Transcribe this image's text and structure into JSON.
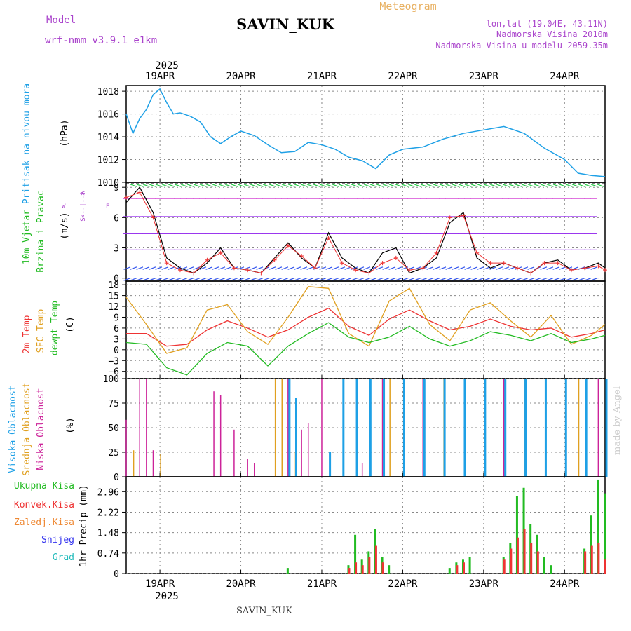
{
  "header": {
    "model_label": "Model",
    "model_name": "wrf-nmm_v3.9.1 e1km",
    "station": "SAVIN_KUK",
    "product": "Meteogram",
    "lonlat": "lon,lat (19.04E, 43.11N)",
    "altitude": "Nadmorska Visina 2010m",
    "model_altitude": "Nadmorska Visina u modelu 2059.35m",
    "footer_station": "SAVIN_KUK",
    "credit": "made by Angel",
    "year": "2025",
    "compass": {
      "w": "W",
      "e": "E",
      "n": "N",
      "s": "S",
      "arrow": "<--|-->"
    }
  },
  "colors": {
    "pressure": "#1ea0e6",
    "wind_label": "#22bb22",
    "wind_speed": "#000000",
    "wind_gust": "#ee3333",
    "temp_2m": "#ee3333",
    "temp_sfc": "#e0a020",
    "dewpoint": "#22bb22",
    "cloud_high": "#1ea0e6",
    "cloud_mid": "#e0a020",
    "cloud_low": "#cc2299",
    "rain_total": "#22bb22",
    "rain_conv": "#ee3333",
    "freezing_rain": "#ee8833",
    "snow": "#3333ee",
    "hail": "#22bbbb",
    "compass": "#aa44cc"
  },
  "chart_data": [
    {
      "type": "line",
      "panel": "pressure",
      "ylabel": "Pritisak na nivou mora",
      "unit": "(hPa)",
      "ylim": [
        1010,
        1018.5
      ],
      "yticks": [
        1010,
        1012,
        1014,
        1016,
        1018
      ],
      "xlim": [
        "2025-04-18 14:00",
        "2025-04-24 12:00"
      ],
      "xticks": [
        "19APR",
        "20APR",
        "21APR",
        "22APR",
        "23APR",
        "24APR"
      ],
      "grid": true,
      "series": [
        {
          "x": [
            "2025-04-18 14:00",
            "2025-04-18 16:00",
            "2025-04-18 18:00",
            "2025-04-18 20:00",
            "2025-04-18 22:00",
            "2025-04-19 00:00",
            "2025-04-19 02:00",
            "2025-04-19 04:00",
            "2025-04-19 06:00",
            "2025-04-19 09:00",
            "2025-04-19 12:00",
            "2025-04-19 15:00",
            "2025-04-19 18:00",
            "2025-04-19 21:00",
            "2025-04-20 00:00",
            "2025-04-20 04:00",
            "2025-04-20 08:00",
            "2025-04-20 12:00",
            "2025-04-20 16:00",
            "2025-04-20 20:00",
            "2025-04-21 00:00",
            "2025-04-21 04:00",
            "2025-04-21 08:00",
            "2025-04-21 12:00",
            "2025-04-21 16:00",
            "2025-04-21 20:00",
            "2025-04-22 00:00",
            "2025-04-22 06:00",
            "2025-04-22 12:00",
            "2025-04-22 18:00",
            "2025-04-23 00:00",
            "2025-04-23 06:00",
            "2025-04-23 12:00",
            "2025-04-23 18:00",
            "2025-04-24 00:00",
            "2025-04-24 04:00",
            "2025-04-24 08:00",
            "2025-04-24 12:00"
          ],
          "values": [
            1016.0,
            1014.3,
            1015.6,
            1016.4,
            1017.7,
            1018.2,
            1017.0,
            1016.0,
            1016.1,
            1015.8,
            1015.3,
            1014.0,
            1013.4,
            1014.0,
            1014.5,
            1014.1,
            1013.3,
            1012.6,
            1012.7,
            1013.5,
            1013.3,
            1012.9,
            1012.2,
            1011.9,
            1011.2,
            1012.4,
            1012.9,
            1013.1,
            1013.8,
            1014.3,
            1014.6,
            1014.9,
            1014.3,
            1013.0,
            1012.0,
            1010.8,
            1010.6,
            1010.5
          ],
          "name": "Pritisak na nivou mora"
        }
      ]
    },
    {
      "type": "line",
      "panel": "wind",
      "ylabel_lines": [
        "10m Vjetar",
        "Brzina i Pravac"
      ],
      "unit": "(m/s)",
      "ylim": [
        -0.3,
        9.5
      ],
      "yticks": [
        0,
        3,
        6,
        9
      ],
      "xlim": [
        "2025-04-18 14:00",
        "2025-04-24 12:00"
      ],
      "grid": true,
      "series": [
        {
          "name": "speed",
          "x": [
            "2025-04-18 14:00",
            "2025-04-18 18:00",
            "2025-04-18 22:00",
            "2025-04-19 02:00",
            "2025-04-19 06:00",
            "2025-04-19 10:00",
            "2025-04-19 14:00",
            "2025-04-19 18:00",
            "2025-04-19 22:00",
            "2025-04-20 02:00",
            "2025-04-20 06:00",
            "2025-04-20 10:00",
            "2025-04-20 14:00",
            "2025-04-20 18:00",
            "2025-04-20 22:00",
            "2025-04-21 02:00",
            "2025-04-21 06:00",
            "2025-04-21 10:00",
            "2025-04-21 14:00",
            "2025-04-21 18:00",
            "2025-04-21 22:00",
            "2025-04-22 02:00",
            "2025-04-22 06:00",
            "2025-04-22 10:00",
            "2025-04-22 14:00",
            "2025-04-22 18:00",
            "2025-04-22 22:00",
            "2025-04-23 02:00",
            "2025-04-23 06:00",
            "2025-04-23 10:00",
            "2025-04-23 14:00",
            "2025-04-23 18:00",
            "2025-04-23 22:00",
            "2025-04-24 02:00",
            "2025-04-24 06:00",
            "2025-04-24 10:00",
            "2025-04-24 12:00"
          ],
          "values": [
            7.5,
            9.0,
            6.5,
            2.0,
            1.0,
            0.5,
            1.5,
            3.0,
            1.0,
            0.8,
            0.5,
            2.0,
            3.5,
            2.0,
            1.0,
            4.5,
            2.0,
            1.0,
            0.5,
            2.5,
            3.0,
            0.5,
            1.0,
            2.0,
            5.5,
            6.5,
            2.0,
            1.0,
            1.5,
            1.0,
            0.5,
            1.5,
            1.8,
            0.8,
            1.0,
            1.5,
            1.0
          ]
        },
        {
          "name": "gust",
          "x": [
            "2025-04-18 14:00",
            "2025-04-18 18:00",
            "2025-04-18 22:00",
            "2025-04-19 02:00",
            "2025-04-19 06:00",
            "2025-04-19 10:00",
            "2025-04-19 14:00",
            "2025-04-19 18:00",
            "2025-04-19 22:00",
            "2025-04-20 02:00",
            "2025-04-20 06:00",
            "2025-04-20 10:00",
            "2025-04-20 14:00",
            "2025-04-20 18:00",
            "2025-04-20 22:00",
            "2025-04-21 02:00",
            "2025-04-21 06:00",
            "2025-04-21 10:00",
            "2025-04-21 14:00",
            "2025-04-21 18:00",
            "2025-04-21 22:00",
            "2025-04-22 02:00",
            "2025-04-22 06:00",
            "2025-04-22 10:00",
            "2025-04-22 14:00",
            "2025-04-22 18:00",
            "2025-04-22 22:00",
            "2025-04-23 02:00",
            "2025-04-23 06:00",
            "2025-04-23 10:00",
            "2025-04-23 14:00",
            "2025-04-23 18:00",
            "2025-04-23 22:00",
            "2025-04-24 02:00",
            "2025-04-24 06:00",
            "2025-04-24 10:00",
            "2025-04-24 12:00"
          ],
          "values": [
            8.0,
            8.5,
            6.0,
            1.5,
            0.8,
            0.5,
            1.8,
            2.5,
            1.0,
            0.8,
            0.5,
            1.8,
            3.2,
            2.2,
            1.0,
            4.0,
            1.5,
            0.8,
            0.5,
            1.5,
            2.0,
            0.8,
            1.0,
            2.5,
            6.0,
            6.2,
            2.5,
            1.5,
            1.5,
            1.0,
            0.5,
            1.5,
            1.5,
            0.8,
            1.0,
            1.2,
            0.8
          ]
        }
      ],
      "arrow_rows": [
        {
          "level": 9.3,
          "color": "#22cc44",
          "angle_deg": -20
        },
        {
          "level": 7.9,
          "color": "#cc22cc",
          "angle_deg": 180
        },
        {
          "level": 6.1,
          "color": "#9933ee",
          "angle_deg": 180
        },
        {
          "level": 4.4,
          "color": "#9933ee",
          "angle_deg": 180
        },
        {
          "level": 2.8,
          "color": "#9933ee",
          "angle_deg": 180
        },
        {
          "level": 1.1,
          "color": "#3355ee",
          "angle_deg": 200
        },
        {
          "level": 0.0,
          "color": "#3355ee",
          "angle_deg": 200
        }
      ]
    },
    {
      "type": "line",
      "panel": "temperature",
      "ylabel_lines": [
        "2m Temp",
        "SFC Temp",
        "dewpt Temp"
      ],
      "unit": "(C)",
      "ylim": [
        -8,
        19
      ],
      "yticks": [
        -6,
        -3,
        0,
        3,
        6,
        9,
        12,
        15,
        18
      ],
      "xlim": [
        "2025-04-18 14:00",
        "2025-04-24 12:00"
      ],
      "grid": true,
      "series": [
        {
          "name": "2m Temp",
          "x": [
            "2025-04-18 14:00",
            "2025-04-18 20:00",
            "2025-04-19 02:00",
            "2025-04-19 08:00",
            "2025-04-19 14:00",
            "2025-04-19 20:00",
            "2025-04-20 02:00",
            "2025-04-20 08:00",
            "2025-04-20 14:00",
            "2025-04-20 20:00",
            "2025-04-21 02:00",
            "2025-04-21 08:00",
            "2025-04-21 14:00",
            "2025-04-21 20:00",
            "2025-04-22 02:00",
            "2025-04-22 08:00",
            "2025-04-22 14:00",
            "2025-04-22 20:00",
            "2025-04-23 02:00",
            "2025-04-23 08:00",
            "2025-04-23 14:00",
            "2025-04-23 20:00",
            "2025-04-24 02:00",
            "2025-04-24 08:00",
            "2025-04-24 12:00"
          ],
          "values": [
            4.5,
            4.5,
            1.0,
            1.5,
            5.5,
            8.0,
            6.0,
            3.5,
            5.5,
            9.0,
            11.5,
            6.5,
            4.0,
            8.5,
            11.0,
            8.0,
            5.5,
            6.5,
            8.5,
            6.5,
            5.5,
            6.0,
            3.5,
            4.5,
            5.5
          ]
        },
        {
          "name": "SFC Temp",
          "x": [
            "2025-04-18 14:00",
            "2025-04-18 20:00",
            "2025-04-19 02:00",
            "2025-04-19 08:00",
            "2025-04-19 14:00",
            "2025-04-19 20:00",
            "2025-04-20 02:00",
            "2025-04-20 08:00",
            "2025-04-20 14:00",
            "2025-04-20 20:00",
            "2025-04-21 02:00",
            "2025-04-21 08:00",
            "2025-04-21 14:00",
            "2025-04-21 20:00",
            "2025-04-22 02:00",
            "2025-04-22 08:00",
            "2025-04-22 14:00",
            "2025-04-22 20:00",
            "2025-04-23 02:00",
            "2025-04-23 08:00",
            "2025-04-23 14:00",
            "2025-04-23 20:00",
            "2025-04-24 02:00",
            "2025-04-24 08:00",
            "2025-04-24 12:00"
          ],
          "values": [
            14.5,
            7.0,
            -1.0,
            0.5,
            11.0,
            12.5,
            5.0,
            1.5,
            9.0,
            17.5,
            17.0,
            4.5,
            1.0,
            13.5,
            17.0,
            7.0,
            2.5,
            11.0,
            13.0,
            8.0,
            3.5,
            9.5,
            1.5,
            4.0,
            7.0
          ]
        },
        {
          "name": "dewpt Temp",
          "x": [
            "2025-04-18 14:00",
            "2025-04-18 20:00",
            "2025-04-19 02:00",
            "2025-04-19 08:00",
            "2025-04-19 14:00",
            "2025-04-19 20:00",
            "2025-04-20 02:00",
            "2025-04-20 08:00",
            "2025-04-20 14:00",
            "2025-04-20 20:00",
            "2025-04-21 02:00",
            "2025-04-21 08:00",
            "2025-04-21 14:00",
            "2025-04-21 20:00",
            "2025-04-22 02:00",
            "2025-04-22 08:00",
            "2025-04-22 14:00",
            "2025-04-22 20:00",
            "2025-04-23 02:00",
            "2025-04-23 08:00",
            "2025-04-23 14:00",
            "2025-04-23 20:00",
            "2025-04-24 02:00",
            "2025-04-24 08:00",
            "2025-04-24 12:00"
          ],
          "values": [
            2.0,
            1.5,
            -5.0,
            -7.0,
            -1.0,
            2.0,
            1.0,
            -4.5,
            1.0,
            4.5,
            7.5,
            3.5,
            2.0,
            3.5,
            6.5,
            3.0,
            1.0,
            2.5,
            5.0,
            4.0,
            2.5,
            4.5,
            2.0,
            3.0,
            4.0
          ]
        }
      ]
    },
    {
      "type": "bar",
      "panel": "clouds",
      "ylabel_lines": [
        "Visoka Oblacnost",
        "Srednja Oblacnost",
        "Niska Oblacnost"
      ],
      "unit": "(%)",
      "ylim": [
        0,
        100
      ],
      "yticks": [
        0,
        25,
        50,
        75,
        100
      ],
      "xlim": [
        "2025-04-18 14:00",
        "2025-04-24 12:00"
      ],
      "grid": true,
      "series": [
        {
          "name": "Niska Oblacnost",
          "x": [
            "2025-04-18 14:00",
            "2025-04-18 18:00",
            "2025-04-18 20:00",
            "2025-04-18 22:00",
            "2025-04-19 16:00",
            "2025-04-19 18:00",
            "2025-04-19 22:00",
            "2025-04-20 02:00",
            "2025-04-20 04:00",
            "2025-04-20 14:00",
            "2025-04-20 18:00",
            "2025-04-20 20:00",
            "2025-04-21 00:00",
            "2025-04-21 12:00",
            "2025-04-21 18:00",
            "2025-04-22 06:00",
            "2025-04-23 06:00",
            "2025-04-24 10:00"
          ],
          "values": [
            58,
            100,
            100,
            27,
            87,
            83,
            48,
            18,
            14,
            100,
            48,
            55,
            100,
            14,
            100,
            100,
            100,
            100
          ]
        },
        {
          "name": "Srednja Oblacnost",
          "x": [
            "2025-04-18 16:00",
            "2025-04-19 00:00",
            "2025-04-20 10:00",
            "2025-04-20 12:00",
            "2025-04-20 16:00",
            "2025-04-21 20:00",
            "2025-04-22 12:00",
            "2025-04-23 12:00",
            "2025-04-24 04:00"
          ],
          "values": [
            27,
            23,
            100,
            100,
            25,
            100,
            100,
            100,
            100
          ]
        },
        {
          "name": "Visoka Oblacnost",
          "x": [
            "2025-04-20 14:00",
            "2025-04-20 16:00",
            "2025-04-21 02:00",
            "2025-04-21 06:00",
            "2025-04-21 10:00",
            "2025-04-21 14:00",
            "2025-04-21 18:00",
            "2025-04-22 00:00",
            "2025-04-22 06:00",
            "2025-04-22 12:00",
            "2025-04-22 18:00",
            "2025-04-23 00:00",
            "2025-04-23 06:00",
            "2025-04-23 12:00",
            "2025-04-23 18:00",
            "2025-04-24 00:00",
            "2025-04-24 06:00",
            "2025-04-24 12:00"
          ],
          "values": [
            100,
            80,
            25,
            100,
            100,
            100,
            100,
            100,
            100,
            100,
            100,
            100,
            100,
            100,
            100,
            100,
            100,
            100
          ]
        }
      ]
    },
    {
      "type": "bar",
      "panel": "precipitation",
      "ylabel": "1hr Precip (mm)",
      "legend": [
        "Ukupna Kisa",
        "Konvek.Kisa",
        "Zaledj.Kisa",
        "Snijeg",
        "Grad"
      ],
      "ylim": [
        0,
        3.5
      ],
      "yticks": [
        0,
        0.74,
        1.48,
        2.22,
        2.96
      ],
      "xlim": [
        "2025-04-18 14:00",
        "2025-04-24 12:00"
      ],
      "grid": true,
      "series": [
        {
          "name": "Ukupna Kisa",
          "x": [
            "2025-04-20 14:00",
            "2025-04-21 08:00",
            "2025-04-21 10:00",
            "2025-04-21 12:00",
            "2025-04-21 14:00",
            "2025-04-21 16:00",
            "2025-04-21 18:00",
            "2025-04-21 20:00",
            "2025-04-22 14:00",
            "2025-04-22 16:00",
            "2025-04-22 18:00",
            "2025-04-22 20:00",
            "2025-04-23 06:00",
            "2025-04-23 08:00",
            "2025-04-23 10:00",
            "2025-04-23 12:00",
            "2025-04-23 14:00",
            "2025-04-23 16:00",
            "2025-04-23 18:00",
            "2025-04-23 20:00",
            "2025-04-24 06:00",
            "2025-04-24 08:00",
            "2025-04-24 10:00",
            "2025-04-24 12:00"
          ],
          "values": [
            0.2,
            0.3,
            1.4,
            0.5,
            0.8,
            1.6,
            0.6,
            0.3,
            0.2,
            0.4,
            0.5,
            0.6,
            0.6,
            1.1,
            2.8,
            3.1,
            1.8,
            1.4,
            0.6,
            0.3,
            0.9,
            2.1,
            3.4,
            2.9
          ]
        },
        {
          "name": "Konvek.Kisa",
          "x": [
            "2025-04-21 08:00",
            "2025-04-21 10:00",
            "2025-04-21 12:00",
            "2025-04-21 14:00",
            "2025-04-21 16:00",
            "2025-04-21 18:00",
            "2025-04-22 16:00",
            "2025-04-22 18:00",
            "2025-04-23 06:00",
            "2025-04-23 08:00",
            "2025-04-23 10:00",
            "2025-04-23 12:00",
            "2025-04-23 14:00",
            "2025-04-23 16:00",
            "2025-04-24 06:00",
            "2025-04-24 08:00",
            "2025-04-24 10:00",
            "2025-04-24 12:00"
          ],
          "values": [
            0.2,
            0.4,
            0.3,
            0.6,
            1.0,
            0.4,
            0.3,
            0.4,
            0.5,
            0.9,
            1.3,
            1.6,
            1.1,
            0.8,
            0.8,
            1.0,
            1.1,
            0.5
          ]
        }
      ]
    }
  ]
}
